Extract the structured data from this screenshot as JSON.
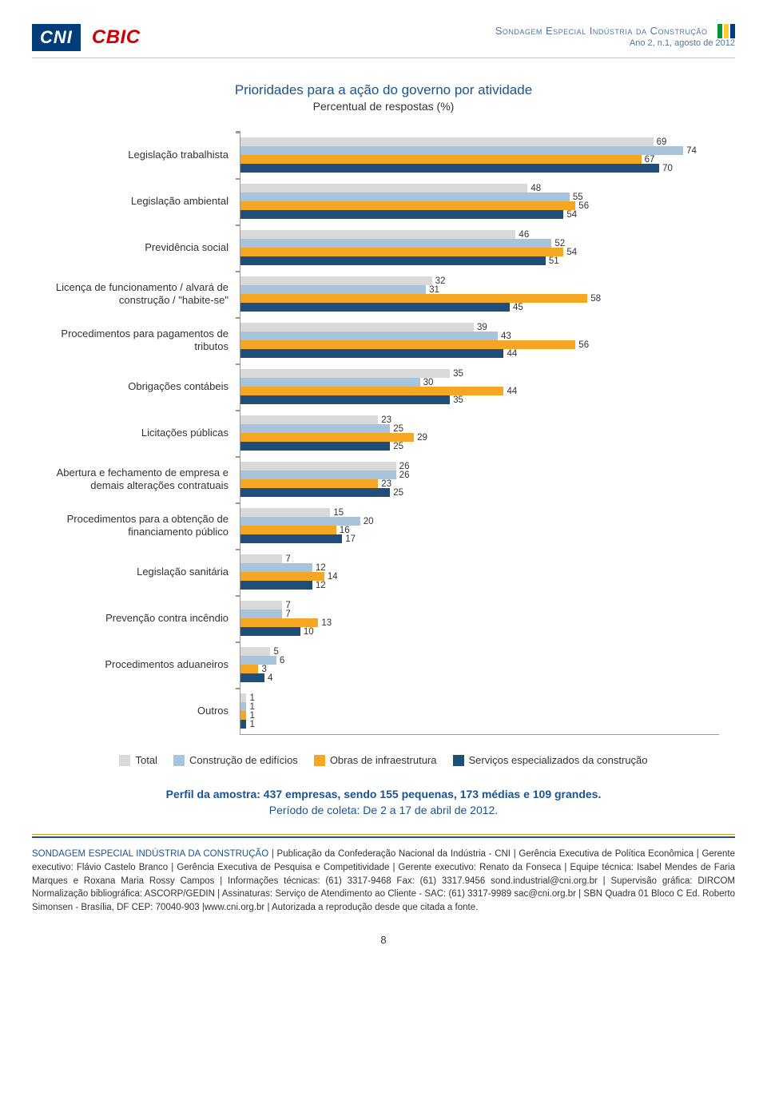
{
  "header": {
    "cni": "CNI",
    "cbic": "CBIC",
    "title": "Sondagem Especial Indústria da Construção",
    "subtitle": "Ano 2, n.1, agosto de 2012"
  },
  "chart": {
    "type": "bar",
    "title": "Prioridades para a ação do governo por atividade",
    "subtitle": "Percentual de respostas (%)",
    "xmax": 80,
    "series": [
      {
        "name": "Total",
        "color": "#d9d9d9"
      },
      {
        "name": "Construção de edifícios",
        "color": "#a8c4dd"
      },
      {
        "name": "Obras de infraestrutura",
        "color": "#f5a623"
      },
      {
        "name": "Serviços especializados da construção",
        "color": "#1f4e79"
      }
    ],
    "categories": [
      {
        "label": "Legislação trabalhista",
        "values": [
          69,
          74,
          67,
          70
        ]
      },
      {
        "label": "Legislação ambiental",
        "values": [
          48,
          55,
          56,
          54
        ]
      },
      {
        "label": "Previdência social",
        "values": [
          46,
          52,
          54,
          51
        ]
      },
      {
        "label": "Licença de funcionamento / alvará de construção / \"habite-se\"",
        "values": [
          32,
          31,
          58,
          45
        ]
      },
      {
        "label": "Procedimentos para pagamentos de tributos",
        "values": [
          39,
          43,
          56,
          44
        ]
      },
      {
        "label": "Obrigações contábeis",
        "values": [
          35,
          30,
          44,
          35
        ]
      },
      {
        "label": "Licitações públicas",
        "values": [
          23,
          25,
          29,
          25
        ]
      },
      {
        "label": "Abertura e fechamento de empresa e demais alterações contratuais",
        "values": [
          26,
          26,
          23,
          25
        ]
      },
      {
        "label": "Procedimentos para a obtenção de financiamento público",
        "values": [
          15,
          20,
          16,
          17
        ]
      },
      {
        "label": "Legislação sanitária",
        "values": [
          7,
          12,
          14,
          12
        ]
      },
      {
        "label": "Prevenção contra incêndio",
        "values": [
          7,
          7,
          13,
          10
        ]
      },
      {
        "label": "Procedimentos aduaneiros",
        "values": [
          5,
          6,
          3,
          4
        ]
      },
      {
        "label": "Outros",
        "values": [
          1,
          1,
          1,
          1
        ]
      }
    ]
  },
  "sample": {
    "line1": "Perfil da amostra: 437 empresas, sendo 155 pequenas, 173 médias e 109 grandes.",
    "line2": "Período de coleta: De 2 a 17 de abril de 2012."
  },
  "footer": {
    "lead": "SONDAGEM ESPECIAL INDÚSTRIA DA CONSTRUÇÃO",
    "body": " | Publicação da Confederação Nacional da Indústria - CNI | Gerência Executiva de Política Econômica | Gerente executivo: Flávio Castelo Branco | Gerência Executiva de Pesquisa e Competitividade | Gerente executivo: Renato da Fonseca | Equipe técnica: Isabel Mendes de Faria Marques e Roxana Maria Rossy Campos | Informações técnicas: (61) 3317-9468 Fax: (61) 3317.9456 sond.industrial@cni.org.br | Supervisão gráfica: DIRCOM Normalização bibliográfica: ASCORP/GEDIN | Assinaturas: Serviço de Atendimento ao Cliente - SAC: (61) 3317-9989 sac@cni.org.br | SBN Quadra 01 Bloco C  Ed. Roberto Simonsen - Brasília, DF CEP: 70040-903 |www.cni.org.br | Autorizada a reprodução desde que citada a fonte."
  },
  "pagenum": "8"
}
